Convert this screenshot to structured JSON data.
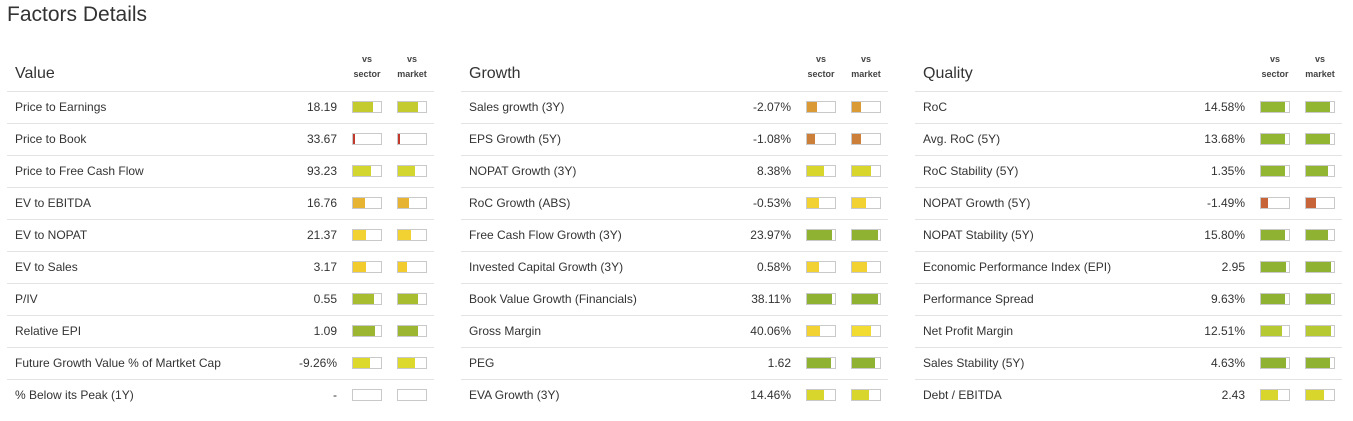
{
  "page": {
    "title": "Factors Details"
  },
  "column_headers": {
    "vs": "vs",
    "sector": "sector",
    "market": "market"
  },
  "panels": [
    {
      "title": "Value",
      "rows": [
        {
          "label": "Price to Earnings",
          "value": "18.19",
          "vs_sector": {
            "fill": 0.71,
            "color": "#c3cb2f"
          },
          "vs_market": {
            "fill": 0.71,
            "color": "#c3cb2f"
          }
        },
        {
          "label": "Price to Book",
          "value": "33.67",
          "vs_sector": {
            "fill": 0.06,
            "color": "#c0392b"
          },
          "vs_market": {
            "fill": 0.06,
            "color": "#c0392b"
          }
        },
        {
          "label": "Price to Free Cash Flow",
          "value": "93.23",
          "vs_sector": {
            "fill": 0.65,
            "color": "#d2d62e"
          },
          "vs_market": {
            "fill": 0.62,
            "color": "#d2d62e"
          }
        },
        {
          "label": "EV to EBITDA",
          "value": "16.76",
          "vs_sector": {
            "fill": 0.42,
            "color": "#e6b432"
          },
          "vs_market": {
            "fill": 0.39,
            "color": "#e6b432"
          }
        },
        {
          "label": "EV to NOPAT",
          "value": "21.37",
          "vs_sector": {
            "fill": 0.45,
            "color": "#f2d232"
          },
          "vs_market": {
            "fill": 0.48,
            "color": "#f2d232"
          }
        },
        {
          "label": "EV to Sales",
          "value": "3.17",
          "vs_sector": {
            "fill": 0.45,
            "color": "#f2cc2e"
          },
          "vs_market": {
            "fill": 0.33,
            "color": "#f2cc2e"
          }
        },
        {
          "label": "P/IV",
          "value": "0.55",
          "vs_sector": {
            "fill": 0.75,
            "color": "#a8bd30"
          },
          "vs_market": {
            "fill": 0.72,
            "color": "#a8bd30"
          }
        },
        {
          "label": "Relative EPI",
          "value": "1.09",
          "vs_sector": {
            "fill": 0.78,
            "color": "#9db632"
          },
          "vs_market": {
            "fill": 0.72,
            "color": "#9db632"
          }
        },
        {
          "label": "Future Growth Value % of Martket Cap",
          "value": "-9.26%",
          "vs_sector": {
            "fill": 0.62,
            "color": "#dcd82c"
          },
          "vs_market": {
            "fill": 0.59,
            "color": "#dcd82c"
          }
        },
        {
          "label": "% Below its Peak (1Y)",
          "value": "-",
          "vs_sector": {
            "fill": 0,
            "color": "#ffffff"
          },
          "vs_market": {
            "fill": 0,
            "color": "#ffffff"
          }
        }
      ]
    },
    {
      "title": "Growth",
      "rows": [
        {
          "label": "Sales growth (3Y)",
          "value": "-2.07%",
          "vs_sector": {
            "fill": 0.34,
            "color": "#da9a35"
          },
          "vs_market": {
            "fill": 0.33,
            "color": "#da9a35"
          }
        },
        {
          "label": "EPS Growth (5Y)",
          "value": "-1.08%",
          "vs_sector": {
            "fill": 0.27,
            "color": "#cb7f38"
          },
          "vs_market": {
            "fill": 0.31,
            "color": "#cb7f38"
          }
        },
        {
          "label": "NOPAT Growth (3Y)",
          "value": "8.38%",
          "vs_sector": {
            "fill": 0.61,
            "color": "#d8d62c"
          },
          "vs_market": {
            "fill": 0.67,
            "color": "#d8d62c"
          }
        },
        {
          "label": "RoC Growth (ABS)",
          "value": "-0.53%",
          "vs_sector": {
            "fill": 0.44,
            "color": "#f2d232"
          },
          "vs_market": {
            "fill": 0.5,
            "color": "#f2d232"
          }
        },
        {
          "label": "Free Cash Flow Growth (3Y)",
          "value": "23.97%",
          "vs_sector": {
            "fill": 0.88,
            "color": "#8fb232"
          },
          "vs_market": {
            "fill": 0.93,
            "color": "#8fb232"
          }
        },
        {
          "label": "Invested Capital Growth (3Y)",
          "value": "0.58%",
          "vs_sector": {
            "fill": 0.44,
            "color": "#f2d232"
          },
          "vs_market": {
            "fill": 0.52,
            "color": "#f2d232"
          }
        },
        {
          "label": "Book Value Growth (Financials)",
          "value": "38.11%",
          "vs_sector": {
            "fill": 0.88,
            "color": "#8fb232"
          },
          "vs_market": {
            "fill": 0.93,
            "color": "#8fb232"
          }
        },
        {
          "label": "Gross Margin",
          "value": "40.06%",
          "vs_sector": {
            "fill": 0.47,
            "color": "#f2d232"
          },
          "vs_market": {
            "fill": 0.67,
            "color": "#f2dc32"
          }
        },
        {
          "label": "PEG",
          "value": "1.62",
          "vs_sector": {
            "fill": 0.84,
            "color": "#8fb232"
          },
          "vs_market": {
            "fill": 0.83,
            "color": "#8fb232"
          }
        },
        {
          "label": "EVA Growth (3Y)",
          "value": "14.46%",
          "vs_sector": {
            "fill": 0.61,
            "color": "#d8d62c"
          },
          "vs_market": {
            "fill": 0.6,
            "color": "#d8d62c"
          }
        }
      ]
    },
    {
      "title": "Quality",
      "rows": [
        {
          "label": "RoC",
          "value": "14.58%",
          "vs_sector": {
            "fill": 0.84,
            "color": "#93b632"
          },
          "vs_market": {
            "fill": 0.86,
            "color": "#93b632"
          }
        },
        {
          "label": "Avg. RoC (5Y)",
          "value": "13.68%",
          "vs_sector": {
            "fill": 0.84,
            "color": "#93b632"
          },
          "vs_market": {
            "fill": 0.86,
            "color": "#93b632"
          }
        },
        {
          "label": "RoC Stability (5Y)",
          "value": "1.35%",
          "vs_sector": {
            "fill": 0.84,
            "color": "#93b632"
          },
          "vs_market": {
            "fill": 0.78,
            "color": "#93b632"
          }
        },
        {
          "label": "NOPAT Growth (5Y)",
          "value": "-1.49%",
          "vs_sector": {
            "fill": 0.24,
            "color": "#c8643a"
          },
          "vs_market": {
            "fill": 0.36,
            "color": "#c8643a"
          }
        },
        {
          "label": "NOPAT Stability (5Y)",
          "value": "15.80%",
          "vs_sector": {
            "fill": 0.86,
            "color": "#8fb232"
          },
          "vs_market": {
            "fill": 0.78,
            "color": "#8fb232"
          }
        },
        {
          "label": "Economic Performance Index (EPI)",
          "value": "2.95",
          "vs_sector": {
            "fill": 0.9,
            "color": "#8fb232"
          },
          "vs_market": {
            "fill": 0.9,
            "color": "#8fb232"
          }
        },
        {
          "label": "Performance Spread",
          "value": "9.63%",
          "vs_sector": {
            "fill": 0.86,
            "color": "#8fb232"
          },
          "vs_market": {
            "fill": 0.9,
            "color": "#8fb232"
          }
        },
        {
          "label": "Net Profit Margin",
          "value": "12.51%",
          "vs_sector": {
            "fill": 0.75,
            "color": "#b7c932"
          },
          "vs_market": {
            "fill": 0.9,
            "color": "#b7c932"
          }
        },
        {
          "label": "Sales Stability (5Y)",
          "value": "4.63%",
          "vs_sector": {
            "fill": 0.9,
            "color": "#8fb232"
          },
          "vs_market": {
            "fill": 0.84,
            "color": "#8fb232"
          }
        },
        {
          "label": "Debt / EBITDA",
          "value": "2.43",
          "vs_sector": {
            "fill": 0.6,
            "color": "#d8d62c"
          },
          "vs_market": {
            "fill": 0.63,
            "color": "#d8d62c"
          }
        }
      ]
    }
  ]
}
